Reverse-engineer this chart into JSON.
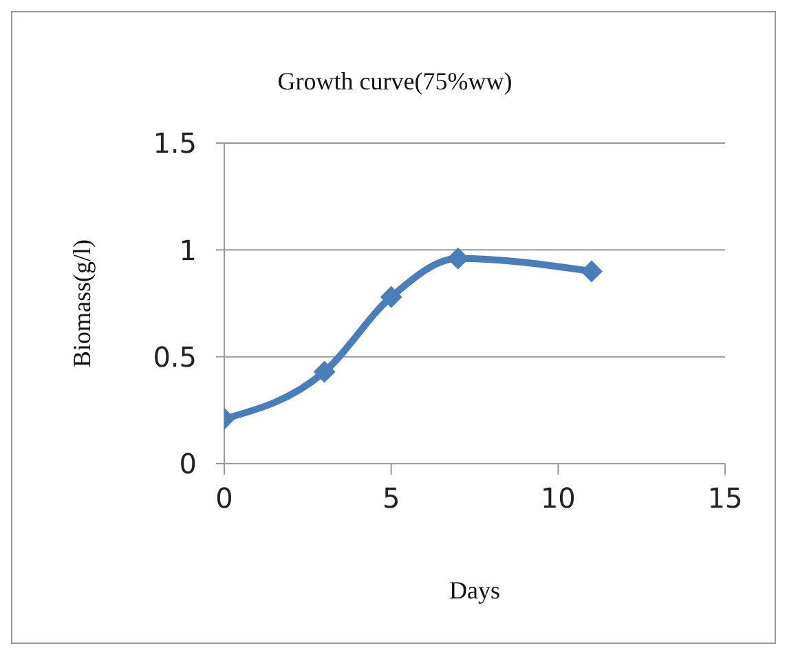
{
  "chart_data": {
    "type": "line",
    "title": "Growth curve(75%ww)",
    "xlabel": "Days",
    "ylabel": "Biomass(g/l)",
    "x": [
      0,
      3,
      5,
      7,
      11
    ],
    "series": [
      {
        "color": "#4a7ebb",
        "values": [
          0.21,
          0.43,
          0.78,
          0.96,
          0.9
        ]
      }
    ],
    "xlim": [
      0,
      15
    ],
    "xticks": [
      0,
      5,
      10,
      15
    ],
    "ylim": [
      0,
      1.5
    ],
    "yticks": [
      0,
      0.5,
      1,
      1.5
    ],
    "grid": "y",
    "legend": false,
    "marker": "diamond",
    "line_style": "solid"
  }
}
